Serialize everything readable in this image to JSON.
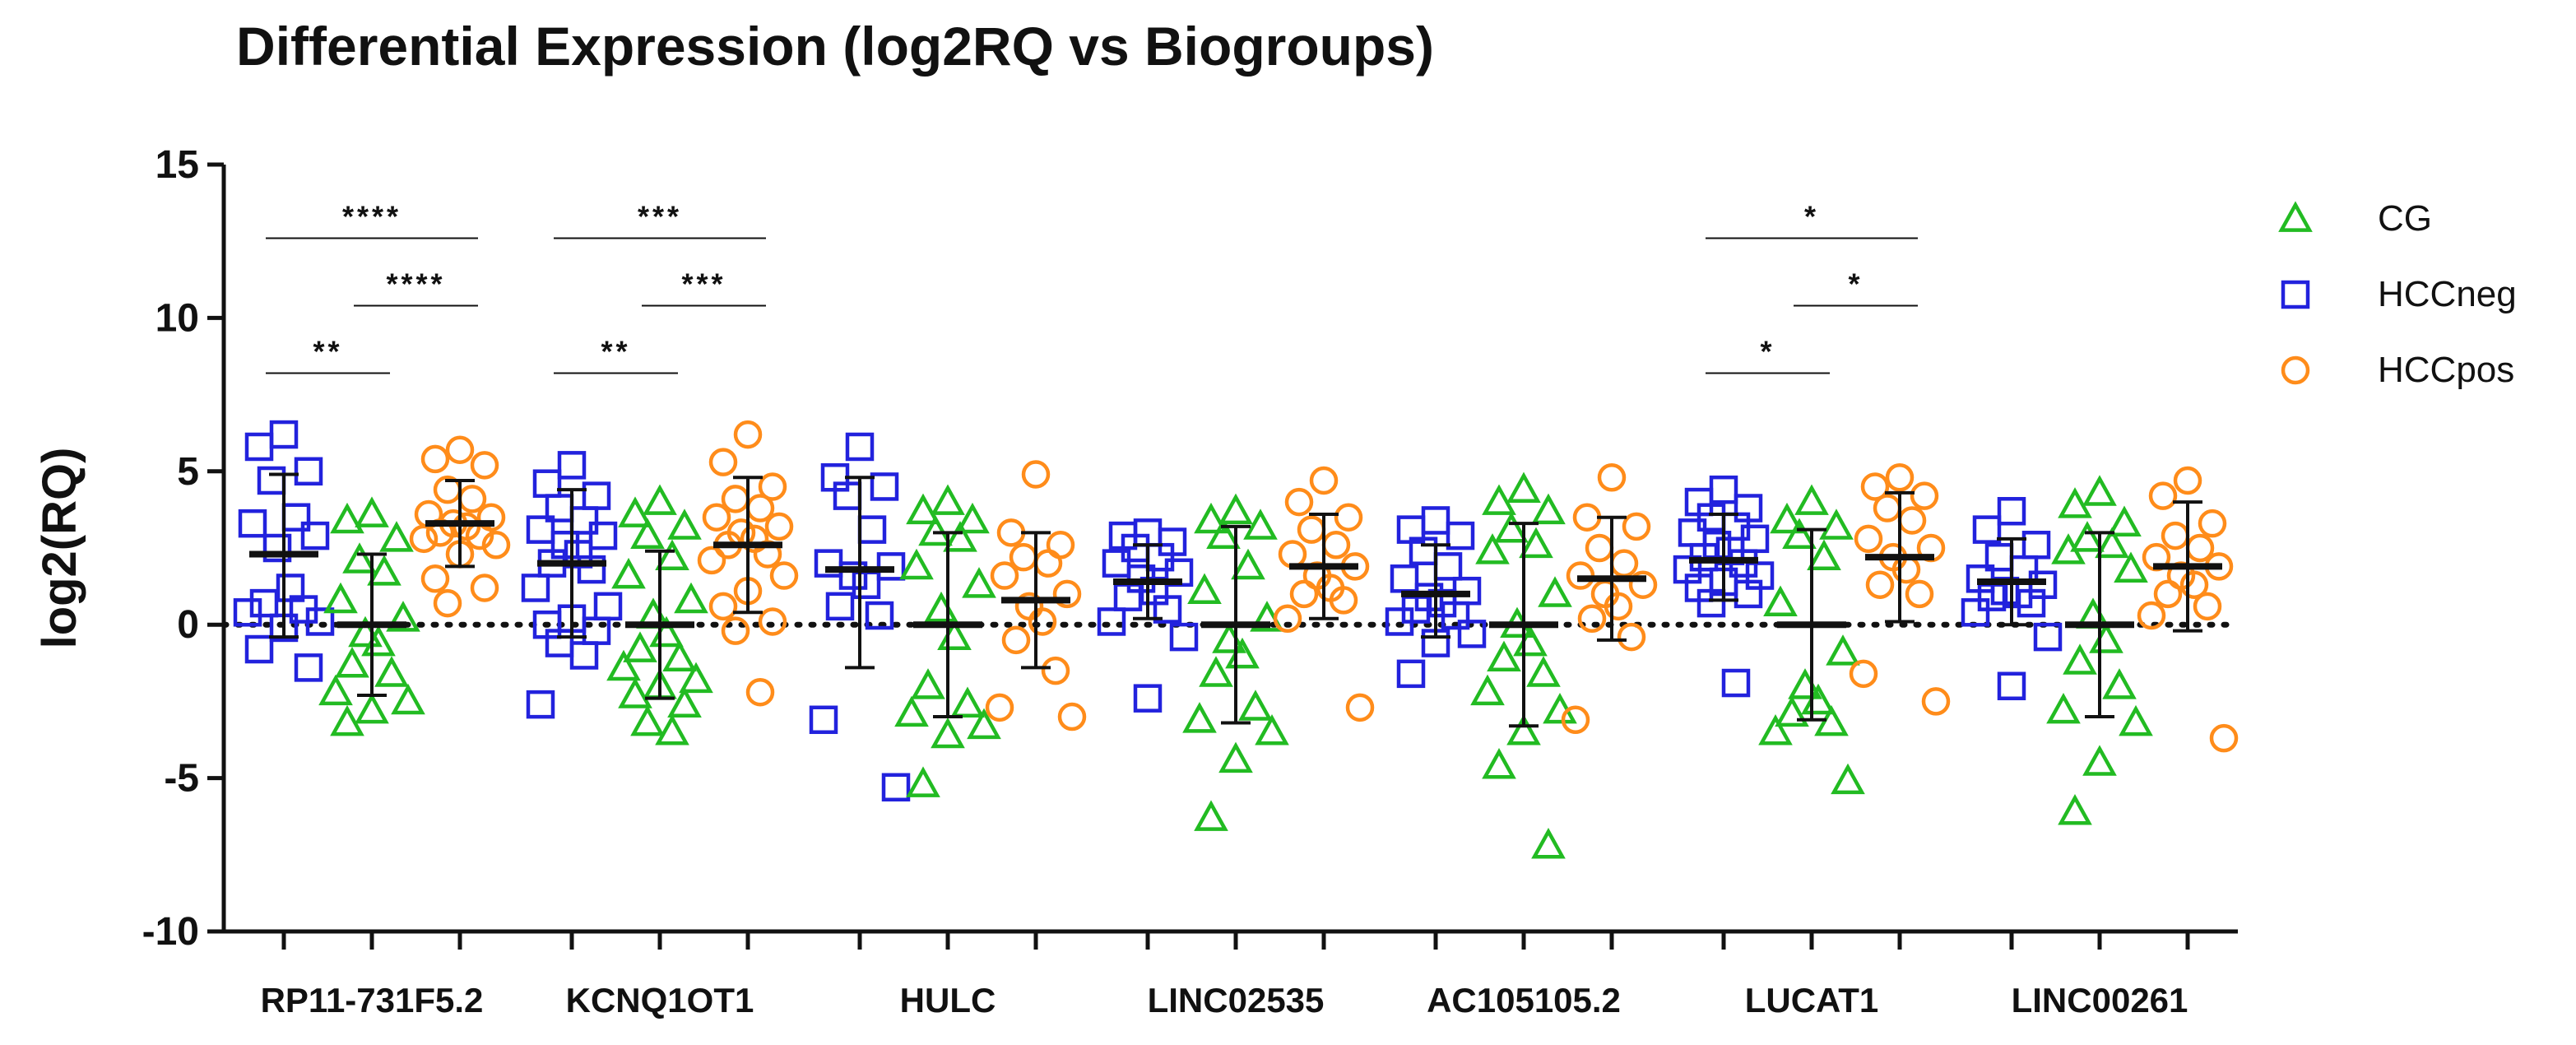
{
  "chart_data": {
    "type": "scatter",
    "title": "Differential Expression (log2RQ vs Biogroups)",
    "ylabel": "log2(RQ)",
    "xlabel": "",
    "ylim": [
      -10,
      15
    ],
    "yticks": [
      15,
      10,
      5,
      0,
      -5,
      -10
    ],
    "ytick_labels": [
      "15",
      "10",
      "5",
      "0",
      "-5",
      "-10"
    ],
    "reference_line": 0,
    "categories": [
      "RP11-731F5.2",
      "KCNQ1OT1",
      "HULC",
      "LINC02535",
      "AC105105.2",
      "LUCAT1",
      "LINC00261"
    ],
    "legend": [
      {
        "name": "CG",
        "marker": "triangle",
        "color": "#22bb22"
      },
      {
        "name": "HCCneg",
        "marker": "square",
        "color": "#2222dd"
      },
      {
        "name": "HCCpos",
        "marker": "circle",
        "color": "#ff8c1a"
      }
    ],
    "groups": [
      {
        "category": "RP11-731F5.2",
        "HCCneg": {
          "mean": 2.3,
          "sd_low": -0.4,
          "sd_high": 4.9,
          "points": [
            6.2,
            5.8,
            5.0,
            4.7,
            3.5,
            3.3,
            2.9,
            2.5,
            1.2,
            0.7,
            0.5,
            0.4,
            0.1,
            -0.1,
            -0.8,
            -1.4
          ]
        },
        "CG": {
          "mean": 0.0,
          "sd_low": -2.3,
          "sd_high": 2.3,
          "points": [
            3.6,
            3.4,
            2.8,
            2.1,
            1.7,
            0.8,
            0.2,
            -0.3,
            -0.6,
            -1.3,
            -1.6,
            -2.2,
            -2.5,
            -2.8,
            -3.2
          ]
        },
        "HCCpos": {
          "mean": 3.3,
          "sd_low": 1.9,
          "sd_high": 4.7,
          "points": [
            5.7,
            5.4,
            5.2,
            4.4,
            4.1,
            3.6,
            3.5,
            3.3,
            3.2,
            3.0,
            2.9,
            2.8,
            2.6,
            2.3,
            1.5,
            1.2,
            0.7
          ]
        }
      },
      {
        "category": "KCNQ1OT1",
        "HCCneg": {
          "mean": 2.0,
          "sd_low": -0.4,
          "sd_high": 4.4,
          "points": [
            5.2,
            4.6,
            4.2,
            3.8,
            3.4,
            3.1,
            2.9,
            2.6,
            2.3,
            2.0,
            1.8,
            1.2,
            0.6,
            0.2,
            0.0,
            -0.2,
            -0.6,
            -1.0,
            -2.6
          ]
        },
        "CG": {
          "mean": 0.0,
          "sd_low": -2.4,
          "sd_high": 2.4,
          "points": [
            4.0,
            3.6,
            3.2,
            2.9,
            2.2,
            1.6,
            0.8,
            0.3,
            -0.3,
            -0.8,
            -1.1,
            -1.4,
            -1.8,
            -2.0,
            -2.3,
            -2.6,
            -3.2,
            -3.5
          ]
        },
        "HCCpos": {
          "mean": 2.6,
          "sd_low": 0.4,
          "sd_high": 4.8,
          "points": [
            6.2,
            5.3,
            4.5,
            4.1,
            3.8,
            3.5,
            3.2,
            3.0,
            2.8,
            2.6,
            2.3,
            2.1,
            1.6,
            1.1,
            0.6,
            0.1,
            -0.2,
            -2.2
          ]
        }
      },
      {
        "category": "HULC",
        "HCCneg": {
          "mean": 1.8,
          "sd_low": -1.4,
          "sd_high": 4.8,
          "points": [
            5.8,
            4.8,
            4.5,
            4.2,
            3.1,
            2.0,
            1.9,
            1.6,
            1.3,
            0.6,
            0.3,
            -3.1,
            -5.3
          ]
        },
        "CG": {
          "mean": 0.0,
          "sd_low": -3.0,
          "sd_high": 3.0,
          "points": [
            4.0,
            3.7,
            3.4,
            3.0,
            2.8,
            1.9,
            1.3,
            0.5,
            -0.4,
            -2.0,
            -2.6,
            -2.9,
            -3.3,
            -3.6,
            -5.2
          ]
        },
        "HCCpos": {
          "mean": 0.8,
          "sd_low": -1.4,
          "sd_high": 3.0,
          "points": [
            4.9,
            3.0,
            2.6,
            2.2,
            2.0,
            1.6,
            1.0,
            0.6,
            0.1,
            -0.5,
            -1.5,
            -2.7,
            -3.0
          ]
        }
      },
      {
        "category": "LINC02535",
        "HCCneg": {
          "mean": 1.4,
          "sd_low": 0.2,
          "sd_high": 2.6,
          "points": [
            3.0,
            2.9,
            2.7,
            2.5,
            2.2,
            2.0,
            1.7,
            1.5,
            1.1,
            0.9,
            0.5,
            0.1,
            -0.4,
            -2.4
          ]
        },
        "CG": {
          "mean": 0.0,
          "sd_low": -3.2,
          "sd_high": 3.2,
          "points": [
            3.7,
            3.4,
            3.2,
            2.9,
            1.9,
            1.1,
            0.2,
            -0.5,
            -1.0,
            -1.6,
            -2.7,
            -3.1,
            -3.5,
            -4.4,
            -6.3
          ]
        },
        "HCCpos": {
          "mean": 1.9,
          "sd_low": 0.2,
          "sd_high": 3.6,
          "points": [
            4.7,
            4.0,
            3.5,
            3.1,
            2.6,
            2.3,
            1.9,
            1.6,
            1.2,
            1.0,
            0.8,
            0.2,
            -2.7
          ]
        }
      },
      {
        "category": "AC105105.2",
        "HCCneg": {
          "mean": 1.0,
          "sd_low": -0.4,
          "sd_high": 2.6,
          "points": [
            3.4,
            3.1,
            2.9,
            2.4,
            1.9,
            1.5,
            1.1,
            0.9,
            0.7,
            0.5,
            0.3,
            0.1,
            -0.3,
            -0.6,
            -1.6
          ]
        },
        "CG": {
          "mean": 0.0,
          "sd_low": -3.3,
          "sd_high": 3.3,
          "points": [
            4.4,
            4.0,
            3.7,
            3.1,
            2.6,
            2.4,
            1.0,
            0.0,
            -0.6,
            -1.1,
            -1.6,
            -2.2,
            -2.8,
            -3.5,
            -4.6,
            -7.2
          ]
        },
        "HCCpos": {
          "mean": 1.5,
          "sd_low": -0.5,
          "sd_high": 3.5,
          "points": [
            4.8,
            3.5,
            3.2,
            2.5,
            2.0,
            1.6,
            1.3,
            1.0,
            0.6,
            0.2,
            -0.4,
            -3.1
          ]
        }
      },
      {
        "category": "LUCAT1",
        "HCCneg": {
          "mean": 2.1,
          "sd_low": 0.8,
          "sd_high": 3.6,
          "points": [
            4.4,
            4.0,
            3.8,
            3.5,
            3.2,
            3.0,
            2.8,
            2.6,
            2.4,
            2.2,
            2.0,
            1.8,
            1.6,
            1.4,
            1.2,
            1.0,
            0.7,
            -1.9
          ]
        },
        "CG": {
          "mean": 0.0,
          "sd_low": -3.1,
          "sd_high": 3.1,
          "points": [
            4.0,
            3.4,
            3.2,
            2.9,
            2.2,
            0.7,
            -0.9,
            -2.0,
            -2.5,
            -2.9,
            -3.2,
            -3.5,
            -5.1
          ]
        },
        "HCCpos": {
          "mean": 2.2,
          "sd_low": 0.1,
          "sd_high": 4.3,
          "points": [
            4.8,
            4.5,
            4.2,
            3.8,
            3.4,
            2.8,
            2.5,
            2.2,
            1.8,
            1.3,
            1.0,
            -1.6,
            -2.5
          ]
        }
      },
      {
        "category": "LINC00261",
        "HCCneg": {
          "mean": 1.4,
          "sd_low": 0.0,
          "sd_high": 2.8,
          "points": [
            3.7,
            3.1,
            2.6,
            2.2,
            1.8,
            1.5,
            1.3,
            1.1,
            1.0,
            0.9,
            0.7,
            0.4,
            -0.4,
            -2.0
          ]
        },
        "CG": {
          "mean": 0.0,
          "sd_low": -3.0,
          "sd_high": 3.0,
          "points": [
            4.3,
            3.9,
            3.3,
            2.8,
            2.6,
            2.4,
            1.8,
            0.3,
            -0.5,
            -1.2,
            -2.0,
            -2.8,
            -3.2,
            -4.5,
            -6.1
          ]
        },
        "HCCpos": {
          "mean": 1.9,
          "sd_low": -0.2,
          "sd_high": 4.0,
          "points": [
            4.7,
            4.2,
            3.3,
            2.9,
            2.5,
            2.2,
            1.9,
            1.6,
            1.3,
            1.0,
            0.6,
            0.3,
            -3.7
          ]
        }
      }
    ],
    "significance": [
      {
        "category": "RP11-731F5.2",
        "from": "HCCneg",
        "to": "HCCpos",
        "label": "****",
        "y": 12.6
      },
      {
        "category": "RP11-731F5.2",
        "from": "CG",
        "to": "HCCpos",
        "label": "****",
        "y": 10.4
      },
      {
        "category": "RP11-731F5.2",
        "from": "HCCneg",
        "to": "CG",
        "label": "**",
        "y": 8.2
      },
      {
        "category": "KCNQ1OT1",
        "from": "HCCneg",
        "to": "HCCpos",
        "label": "***",
        "y": 12.6
      },
      {
        "category": "KCNQ1OT1",
        "from": "CG",
        "to": "HCCpos",
        "label": "***",
        "y": 10.4
      },
      {
        "category": "KCNQ1OT1",
        "from": "HCCneg",
        "to": "CG",
        "label": "**",
        "y": 8.2
      },
      {
        "category": "LUCAT1",
        "from": "HCCneg",
        "to": "HCCpos",
        "label": "*",
        "y": 12.6
      },
      {
        "category": "LUCAT1",
        "from": "CG",
        "to": "HCCpos",
        "label": "*",
        "y": 10.4
      },
      {
        "category": "LUCAT1",
        "from": "HCCneg",
        "to": "CG",
        "label": "*",
        "y": 8.2
      }
    ]
  }
}
